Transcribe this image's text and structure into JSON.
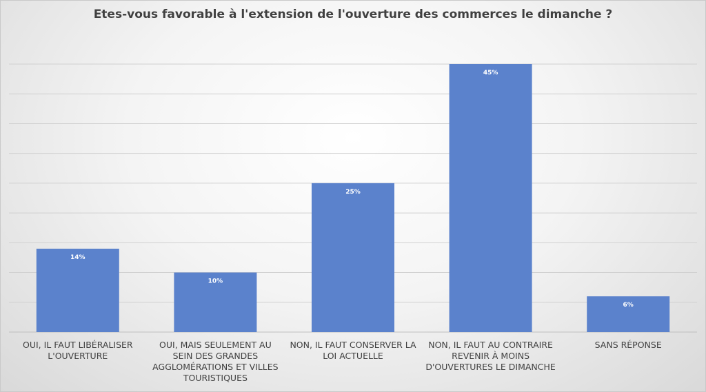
{
  "chart_data": {
    "type": "bar",
    "title": "Etes-vous favorable à l'extension de l'ouverture des commerces le dimanche ?",
    "categories": [
      "OUI, IL FAUT LIBÉRALISER L'OUVERTURE",
      "OUI, MAIS SEULEMENT AU SEIN DES GRANDES AGGLOMÉRATIONS ET VILLES TOURISTIQUES",
      "NON, IL FAUT CONSERVER LA LOI ACTUELLE",
      "NON, IL FAUT AU CONTRAIRE REVENIR À MOINS D'OUVERTURES LE DIMANCHE",
      "SANS RÉPONSE"
    ],
    "values": [
      14,
      10,
      25,
      45,
      6
    ],
    "data_labels": [
      "14%",
      "10%",
      "25%",
      "45%",
      "6%"
    ],
    "ylim": [
      0,
      45
    ],
    "gridline_step": 5,
    "grid": true,
    "y_axis_labels": false,
    "legend": "none",
    "colors": {
      "bar": "#5b82cc",
      "grid": "#d0d0d0",
      "data_label": "#ffffff"
    }
  }
}
